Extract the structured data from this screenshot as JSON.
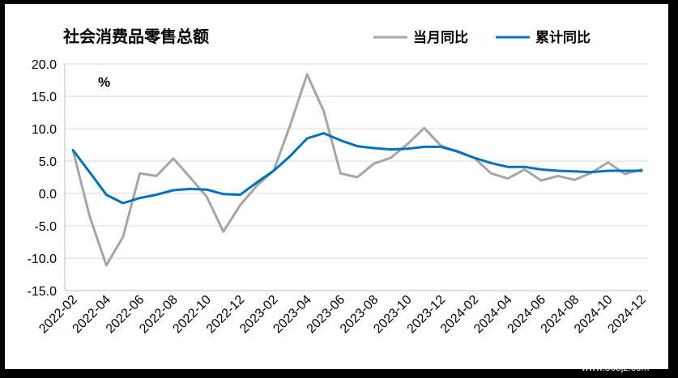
{
  "watermark": "www.365jz.com",
  "chart_data": {
    "type": "line",
    "title": "社会消费品零售总额",
    "unit_label": "%",
    "ylim": [
      -15,
      20
    ],
    "yticks": [
      "20.0",
      "15.0",
      "10.0",
      "5.0",
      "0.0",
      "-5.0",
      "-10.0",
      "-15.0"
    ],
    "ytick_values": [
      20,
      15,
      10,
      5,
      0,
      -5,
      -10,
      -15
    ],
    "grid": true,
    "legend_position": "top-right",
    "x": [
      "2022-02",
      "2022-03",
      "2022-04",
      "2022-05",
      "2022-06",
      "2022-07",
      "2022-08",
      "2022-09",
      "2022-10",
      "2022-11",
      "2022-12",
      "2023-01",
      "2023-02",
      "2023-03",
      "2023-04",
      "2023-05",
      "2023-06",
      "2023-07",
      "2023-08",
      "2023-09",
      "2023-10",
      "2023-11",
      "2023-12",
      "2024-01",
      "2024-02",
      "2024-03",
      "2024-04",
      "2024-05",
      "2024-06",
      "2024-07",
      "2024-08",
      "2024-09",
      "2024-10",
      "2024-11",
      "2024-12"
    ],
    "xtick_labels": [
      "2022-02",
      "2022-04",
      "2022-06",
      "2022-08",
      "2022-10",
      "2022-12",
      "2023-02",
      "2023-04",
      "2023-06",
      "2023-08",
      "2023-10",
      "2023-12",
      "2024-02",
      "2024-04",
      "2024-06",
      "2024-08",
      "2024-10",
      "2024-12"
    ],
    "series": [
      {
        "name": "当月同比",
        "color": "#a6a6a6",
        "values": [
          6.7,
          -3.5,
          -11.1,
          -6.7,
          3.1,
          2.7,
          5.4,
          2.5,
          -0.5,
          -5.9,
          -1.8,
          1.2,
          3.5,
          10.6,
          18.4,
          12.7,
          3.1,
          2.5,
          4.6,
          5.5,
          7.6,
          10.1,
          7.4,
          6.4,
          5.5,
          3.1,
          2.3,
          3.7,
          2.0,
          2.7,
          2.1,
          3.2,
          4.8,
          3.0,
          3.7
        ],
        "line_width": 3
      },
      {
        "name": "累计同比",
        "color": "#0070c0",
        "values": [
          6.7,
          3.3,
          -0.2,
          -1.5,
          -0.7,
          -0.2,
          0.5,
          0.7,
          0.6,
          -0.1,
          -0.2,
          1.7,
          3.5,
          5.8,
          8.5,
          9.3,
          8.2,
          7.3,
          7.0,
          6.8,
          6.9,
          7.2,
          7.2,
          6.5,
          5.5,
          4.7,
          4.1,
          4.1,
          3.7,
          3.5,
          3.4,
          3.3,
          3.5,
          3.5,
          3.5
        ],
        "line_width": 3
      }
    ]
  }
}
